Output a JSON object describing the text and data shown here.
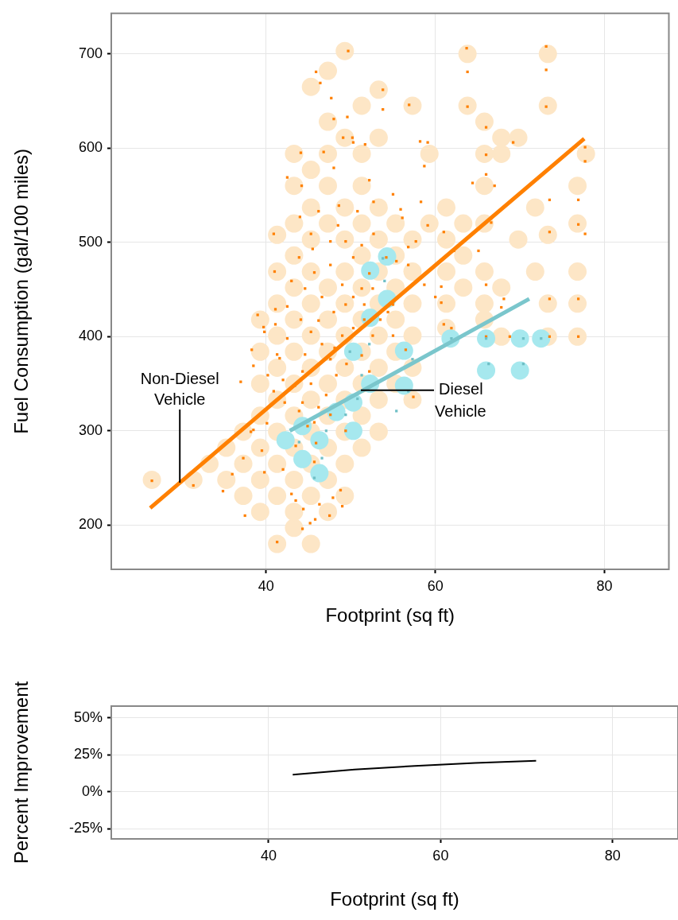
{
  "chart_data": [
    {
      "type": "scatter",
      "xlabel": "Footprint (sq ft)",
      "ylabel": "Fuel Consumption (gal/100 miles)",
      "xlim": [
        21.7,
        87.6
      ],
      "ylim": [
        153,
        743
      ],
      "xticks": [
        40,
        60,
        80
      ],
      "yticks": [
        200,
        300,
        400,
        500,
        600,
        700
      ],
      "grid": true,
      "series": [
        {
          "marker": "circle",
          "color": "#fde6c6",
          "x": [
            26.5,
            31.4,
            33.3,
            35.3,
            35.3,
            37.3,
            37.3,
            37.3,
            39.3,
            39.3,
            39.3,
            39.3,
            39.3,
            39.3,
            39.3,
            41.3,
            41.3,
            41.3,
            41.3,
            41.3,
            41.3,
            41.3,
            41.3,
            41.3,
            41.3,
            43.3,
            43.3,
            43.3,
            43.3,
            43.3,
            43.3,
            43.3,
            43.3,
            43.3,
            43.3,
            43.3,
            45.3,
            45.3,
            45.3,
            45.3,
            45.3,
            45.3,
            45.3,
            45.3,
            45.3,
            47.3,
            47.3,
            47.3,
            47.3,
            47.3,
            47.3,
            47.3,
            49.3,
            49.3,
            49.3,
            49.3,
            49.3,
            49.3,
            51.3,
            51.3,
            51.3,
            51.3,
            51.3,
            53.3,
            53.3,
            53.3,
            53.3,
            53.3,
            55.3,
            55.3,
            55.3,
            55.3,
            55.3,
            55.3,
            57.3,
            57.3,
            57.3,
            57.3,
            57.3,
            57.3,
            57.3,
            59.3,
            59.3,
            61.3,
            61.3,
            61.3,
            61.3,
            61.3,
            63.3,
            63.3,
            63.3,
            63.8,
            63.8,
            65.8,
            65.8,
            65.8,
            65.8,
            65.8,
            65.8,
            65.8,
            67.8,
            67.8,
            67.8,
            67.8,
            69.8,
            69.8,
            71.8,
            71.8,
            73.3,
            73.3,
            73.3,
            73.3,
            73.3,
            76.8,
            76.8,
            76.8,
            76.8,
            76.8,
            77.8,
            47.3,
            47.3,
            47.3,
            47.3,
            47.3,
            47.3,
            49.3,
            49.3,
            49.3,
            49.3,
            49.3,
            49.3,
            51.3,
            51.3,
            51.3,
            51.3,
            51.3,
            51.3,
            53.3,
            53.3,
            53.3,
            53.3,
            53.3,
            45.3,
            45.3,
            45.3,
            45.3,
            43.3,
            43.3
          ],
          "values": [
            248,
            248,
            265,
            282,
            248,
            231,
            265,
            299,
            214,
            248,
            282,
            316,
            350,
            384,
            418,
            180,
            231,
            265,
            299,
            333,
            367,
            401,
            435,
            469,
            508,
            197,
            214,
            248,
            350,
            384,
            418,
            452,
            486,
            520,
            560,
            594,
            180,
            231,
            265,
            435,
            469,
            503,
            537,
            577,
            665,
            214,
            248,
            520,
            560,
            594,
            628,
            682,
            231,
            469,
            503,
            537,
            611,
            703,
            486,
            520,
            560,
            594,
            645,
            469,
            503,
            537,
            611,
            662,
            350,
            384,
            418,
            452,
            486,
            520,
            333,
            367,
            401,
            435,
            469,
            503,
            645,
            520,
            594,
            409,
            435,
            469,
            503,
            537,
            452,
            486,
            520,
            700,
            645,
            418,
            435,
            469,
            520,
            560,
            594,
            628,
            452,
            594,
            611,
            400,
            503,
            611,
            469,
            537,
            700,
            645,
            400,
            435,
            508,
            400,
            435,
            469,
            520,
            560,
            594,
            282,
            316,
            350,
            384,
            418,
            452,
            265,
            299,
            333,
            367,
            401,
            435,
            282,
            316,
            350,
            384,
            418,
            452,
            299,
            333,
            367,
            401,
            435,
            299,
            333,
            367,
            401,
            282,
            316
          ]
        },
        {
          "marker": "circle",
          "color": "#a6e8ee",
          "x": [
            42.3,
            44.3,
            46.3,
            44.3,
            46.3,
            48.3,
            50.3,
            50.3,
            52.3,
            50.3,
            52.3,
            54.3,
            52.3,
            54.3,
            56.3,
            56.3,
            61.8,
            66,
            70,
            72.5,
            66,
            70
          ],
          "values": [
            290,
            270,
            255,
            305,
            290,
            320,
            330,
            300,
            350,
            384,
            420,
            440,
            470,
            485,
            385,
            348,
            398,
            398,
            398,
            398,
            364,
            364
          ]
        },
        {
          "marker": "square",
          "color": "#ff8000",
          "x": [
            49.7,
            45.9,
            46.4,
            47.7,
            48.0,
            49.6,
            49.1,
            50.2,
            53.8,
            53.8,
            44.1,
            46.8,
            50.3,
            51.7,
            42.5,
            44.2,
            48.0,
            52.2,
            44.0,
            46.2,
            48.6,
            40.9,
            41.0,
            63.7,
            63.8,
            63.8,
            73.1,
            73.1,
            73.1,
            56.9,
            66.0,
            59.1,
            69.2,
            66.0,
            66.0,
            77.7,
            77.7,
            67.0,
            64.4,
            58.2,
            58.7,
            58.3,
            66.6,
            76.9,
            76.9,
            73.5,
            73.5,
            77.7,
            65.1,
            62.2,
            61.0,
            56.8,
            55.4,
            56.1,
            54.2,
            52.7,
            73.5,
            76.9,
            73.5,
            76.9,
            68.8,
            66.0,
            68.1,
            67.8,
            60.7,
            61.0,
            61.9,
            60.7,
            66.0,
            55.0,
            55.0,
            56.5,
            57.4,
            26.5,
            31.4,
            34.9,
            36.0,
            38.2,
            37.3,
            37.5,
            41.3,
            44.3,
            45.2,
            44.4,
            45.8,
            47.5,
            49.0,
            47.9,
            48.8,
            46.3,
            43.5,
            43.0,
            39.8,
            39.5,
            38.5,
            40.1,
            38.5,
            38.3,
            37.0,
            39.0,
            39.7,
            39.8,
            41.1,
            41.1,
            42.5,
            44.1,
            41.6,
            42.0,
            43.4,
            44.3,
            44.9,
            45.9,
            45.7,
            43.5,
            42.0,
            47.1,
            48.3,
            47.6,
            46.6,
            45.3,
            46.2,
            48.0,
            49.4,
            50.3,
            51.3,
            49.0,
            46.6,
            44.6,
            43.0,
            45.7,
            47.6,
            50.3,
            52.2,
            47.6,
            49.4,
            45.5,
            51.3,
            43.9,
            48.5,
            50.8,
            52.7,
            55.0,
            55.9,
            45.3,
            52.6,
            53.5,
            54.4,
            51.6,
            50.3,
            49.0,
            48.1,
            49.5,
            51.3,
            52.2,
            44.3,
            45.3,
            46.2,
            47.6,
            49.4,
            45.7,
            43.9,
            42.2,
            40.9,
            40.2,
            41.3,
            42.5,
            44.6,
            51.6,
            52.6,
            56.8,
            57.7,
            59.1,
            58.7,
            60.0
          ],
          "values": [
            703,
            681,
            669,
            653,
            631,
            633,
            611,
            611,
            662,
            641,
            595,
            596,
            606,
            604,
            569,
            560,
            579,
            566,
            527,
            533,
            539,
            509,
            469,
            706,
            681,
            644,
            708,
            683,
            644,
            646,
            622,
            606,
            606,
            593,
            572,
            601,
            586,
            560,
            563,
            607,
            581,
            543,
            521,
            545,
            519,
            545,
            511,
            509,
            491,
            491,
            511,
            495,
            480,
            526,
            484,
            509,
            440,
            440,
            400,
            400,
            400,
            400,
            440,
            431,
            436,
            413,
            409,
            453,
            455,
            434,
            401,
            386,
            336,
            247,
            242,
            236,
            254,
            299,
            271,
            210,
            182,
            196,
            202,
            217,
            206,
            210,
            220,
            229,
            237,
            222,
            226,
            233,
            256,
            279,
            301,
            308,
            369,
            386,
            352,
            423,
            410,
            405,
            413,
            429,
            432,
            418,
            377,
            354,
            348,
            330,
            305,
            287,
            267,
            284,
            259,
            338,
            359,
            376,
            392,
            405,
            417,
            426,
            434,
            442,
            451,
            455,
            442,
            451,
            459,
            468,
            476,
            484,
            467,
            501,
            501,
            493,
            497,
            484,
            518,
            533,
            543,
            551,
            535,
            509,
            401,
            418,
            426,
            418,
            409,
            401,
            388,
            371,
            380,
            363,
            363,
            350,
            325,
            317,
            300,
            309,
            321,
            330,
            342,
            359,
            381,
            398,
            381,
            434,
            451,
            476,
            501,
            518,
            455,
            442
          ]
        },
        {
          "marker": "square",
          "color": "#6fbfc6",
          "x": [
            61.9,
            66.0,
            66.3,
            70.4,
            70.4,
            72.5,
            56.8,
            55.4,
            57.3,
            53.8,
            49.9,
            51.3,
            43.9,
            46.6,
            49.4,
            52.2,
            45.7,
            54.0,
            47.1,
            50.8
          ],
          "values": [
            398,
            398,
            371,
            371,
            398,
            398,
            342,
            321,
            376,
            483,
            384,
            359,
            288,
            271,
            317,
            392,
            250,
            459,
            300,
            334
          ]
        },
        {
          "type": "line",
          "color": "#ff8000",
          "x": [
            26.3,
            40,
            77.6
          ],
          "values": [
            218,
            323,
            610
          ]
        },
        {
          "type": "line",
          "color": "#7ac6cc",
          "x": [
            42.8,
            71.1
          ],
          "values": [
            300,
            440
          ]
        }
      ],
      "annotations": [
        {
          "text": "Non-Diesel\nVehicle",
          "x": 29.8,
          "y": 245
        },
        {
          "text": "Diesel\nVehicle",
          "x": 51.2,
          "y": 343
        }
      ]
    },
    {
      "type": "line",
      "xlabel": "Footprint (sq ft)",
      "ylabel": "Percent Improvement",
      "xlim": [
        21.7,
        87.6
      ],
      "ylim": [
        -32,
        58
      ],
      "xticks": [
        40,
        60,
        80
      ],
      "yticks": [
        {
          "value": -25,
          "label": "-25%"
        },
        {
          "value": 0,
          "label": "0%"
        },
        {
          "value": 25,
          "label": "25%"
        },
        {
          "value": 50,
          "label": "50%"
        }
      ],
      "grid": true,
      "series": [
        {
          "color": "#000000",
          "x": [
            42.8,
            50,
            57,
            64,
            71.1
          ],
          "values": [
            11.5,
            15,
            17.5,
            19.5,
            21
          ]
        }
      ]
    }
  ]
}
